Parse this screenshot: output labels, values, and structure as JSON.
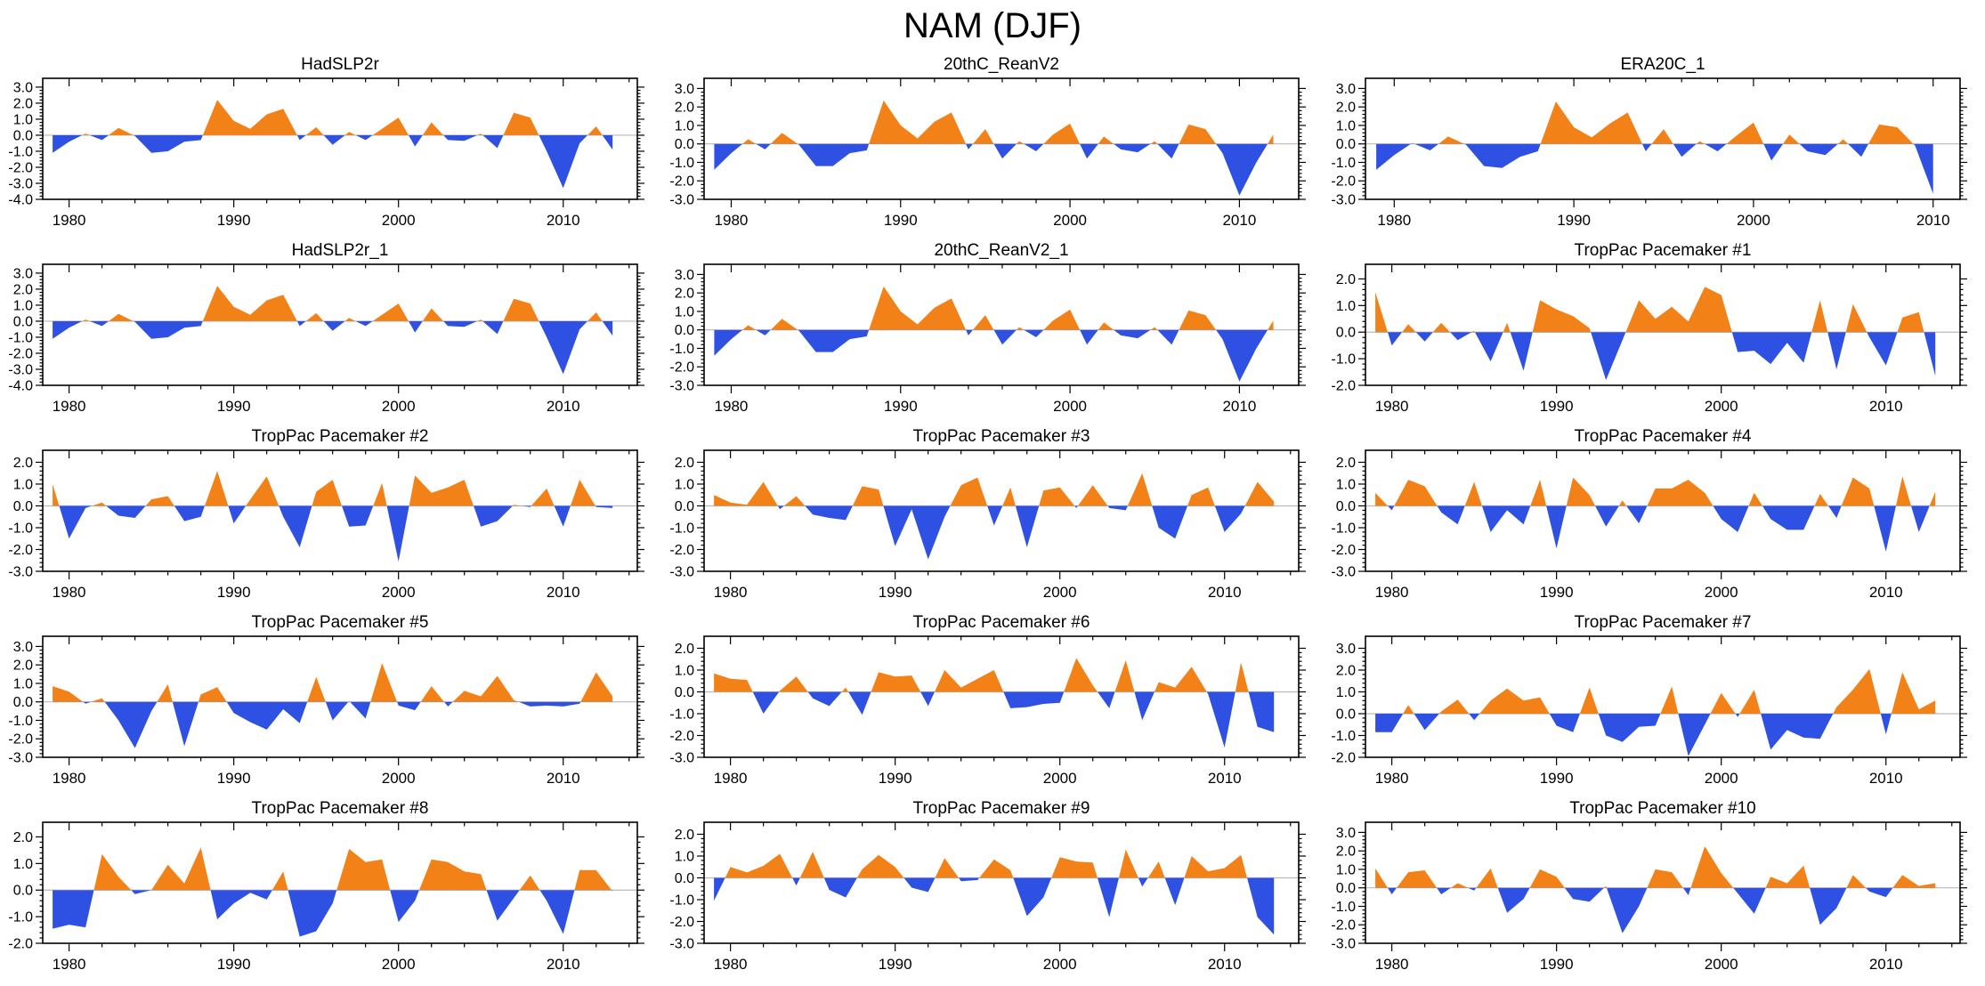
{
  "figure": {
    "title": "NAM (DJF)"
  },
  "colors": {
    "positive": "#F28118",
    "negative": "#2F51E3",
    "zero_line": "#b9b9b9",
    "frame": "#000000"
  },
  "chart_data": [
    {
      "type": "area",
      "title": "HadSLP2r",
      "x_start": 1979,
      "x_ticks": [
        1980,
        1990,
        2000,
        2010
      ],
      "ylim": [
        -4,
        3
      ],
      "ytick_step": 1,
      "values": [
        -1.1,
        -0.4,
        0.1,
        -0.3,
        0.45,
        -0.05,
        -1.1,
        -1.0,
        -0.4,
        -0.3,
        2.2,
        0.9,
        0.4,
        1.3,
        1.65,
        -0.3,
        0.5,
        -0.6,
        0.2,
        -0.3,
        0.4,
        1.1,
        -0.7,
        0.8,
        -0.3,
        -0.35,
        0.1,
        -0.8,
        1.4,
        1.1,
        -1.0,
        -3.3,
        -0.5,
        0.55,
        -0.9
      ]
    },
    {
      "type": "area",
      "title": "20thC_ReanV2",
      "x_start": 1979,
      "x_ticks": [
        1980,
        1990,
        2000,
        2010
      ],
      "ylim": [
        -3,
        3
      ],
      "ytick_step": 1,
      "values": [
        -1.4,
        -0.5,
        0.25,
        -0.3,
        0.6,
        -0.05,
        -1.2,
        -1.2,
        -0.5,
        -0.35,
        2.35,
        1.0,
        0.3,
        1.2,
        1.7,
        -0.3,
        0.8,
        -0.8,
        0.15,
        -0.4,
        0.5,
        1.1,
        -0.8,
        0.4,
        -0.3,
        -0.45,
        0.15,
        -0.8,
        1.05,
        0.8,
        -0.5,
        -2.8,
        -1.0,
        0.5
      ]
    },
    {
      "type": "area",
      "title": "ERA20C_1",
      "x_start": 1979,
      "x_ticks": [
        1980,
        1990,
        2000,
        2010
      ],
      "ylim": [
        -3,
        3
      ],
      "ytick_step": 1,
      "values": [
        -1.4,
        -0.6,
        0.05,
        -0.35,
        0.4,
        -0.05,
        -1.2,
        -1.3,
        -0.7,
        -0.4,
        2.3,
        0.9,
        0.35,
        1.1,
        1.7,
        -0.4,
        0.8,
        -0.7,
        0.15,
        -0.4,
        0.4,
        1.15,
        -0.9,
        0.5,
        -0.4,
        -0.6,
        0.25,
        -0.7,
        1.05,
        0.9,
        -0.1,
        -2.7
      ]
    },
    {
      "type": "area",
      "title": "HadSLP2r_1",
      "x_start": 1979,
      "x_ticks": [
        1980,
        1990,
        2000,
        2010
      ],
      "ylim": [
        -4,
        3
      ],
      "ytick_step": 1,
      "values": [
        -1.1,
        -0.4,
        0.1,
        -0.3,
        0.45,
        -0.05,
        -1.1,
        -1.0,
        -0.4,
        -0.3,
        2.2,
        0.9,
        0.4,
        1.3,
        1.65,
        -0.3,
        0.5,
        -0.6,
        0.2,
        -0.3,
        0.4,
        1.1,
        -0.7,
        0.8,
        -0.3,
        -0.35,
        0.1,
        -0.8,
        1.4,
        1.1,
        -1.0,
        -3.3,
        -0.5,
        0.55,
        -0.9
      ]
    },
    {
      "type": "area",
      "title": "20thC_ReanV2_1",
      "x_start": 1979,
      "x_ticks": [
        1980,
        1990,
        2000,
        2010
      ],
      "ylim": [
        -3,
        3
      ],
      "ytick_step": 1,
      "values": [
        -1.4,
        -0.5,
        0.25,
        -0.3,
        0.6,
        -0.05,
        -1.2,
        -1.2,
        -0.5,
        -0.35,
        2.35,
        1.0,
        0.3,
        1.2,
        1.7,
        -0.3,
        0.8,
        -0.8,
        0.15,
        -0.4,
        0.5,
        1.1,
        -0.8,
        0.4,
        -0.3,
        -0.45,
        0.15,
        -0.8,
        1.05,
        0.8,
        -0.5,
        -2.8,
        -1.0,
        0.5
      ]
    },
    {
      "type": "area",
      "title": "TropPac Pacemaker #1",
      "x_start": 1979,
      "x_ticks": [
        1980,
        1990,
        2000,
        2010
      ],
      "ylim": [
        -2,
        2
      ],
      "ytick_step": 1,
      "values": [
        1.5,
        -0.5,
        0.3,
        -0.35,
        0.35,
        -0.3,
        0.05,
        -1.1,
        0.35,
        -1.45,
        1.2,
        0.85,
        0.6,
        0.15,
        -1.8,
        -0.3,
        1.2,
        0.5,
        0.95,
        0.4,
        1.7,
        1.4,
        -0.75,
        -0.7,
        -1.2,
        -0.4,
        -1.15,
        1.2,
        -1.4,
        1.05,
        -0.2,
        -1.25,
        0.55,
        0.75,
        -1.65
      ]
    },
    {
      "type": "area",
      "title": "TropPac Pacemaker #2",
      "x_start": 1979,
      "x_ticks": [
        1980,
        1990,
        2000,
        2010
      ],
      "ylim": [
        -3,
        2
      ],
      "ytick_step": 1,
      "values": [
        1.0,
        -1.5,
        -0.1,
        0.15,
        -0.45,
        -0.55,
        0.3,
        0.45,
        -0.7,
        -0.5,
        1.6,
        -0.8,
        0.3,
        1.35,
        -0.5,
        -1.9,
        0.65,
        1.2,
        -0.95,
        -0.9,
        1.05,
        -2.55,
        1.4,
        0.6,
        0.85,
        1.2,
        -0.95,
        -0.7,
        0.05,
        -0.05,
        0.8,
        -0.95,
        1.2,
        -0.05,
        -0.1
      ]
    },
    {
      "type": "area",
      "title": "TropPac Pacemaker #3",
      "x_start": 1979,
      "x_ticks": [
        1980,
        1990,
        2000,
        2010
      ],
      "ylim": [
        -3,
        2
      ],
      "ytick_step": 1,
      "values": [
        0.5,
        0.15,
        0.05,
        1.1,
        -0.15,
        0.45,
        -0.4,
        -0.55,
        -0.65,
        0.9,
        0.75,
        -1.85,
        -0.15,
        -2.45,
        -0.5,
        0.95,
        1.3,
        -0.9,
        0.85,
        -1.9,
        0.7,
        0.85,
        -0.1,
        0.95,
        -0.1,
        -0.2,
        1.5,
        -1.0,
        -1.5,
        0.5,
        0.85,
        -1.2,
        -0.35,
        1.1,
        0.2
      ]
    },
    {
      "type": "area",
      "title": "TropPac Pacemaker #4",
      "x_start": 1979,
      "x_ticks": [
        1980,
        1990,
        2000,
        2010
      ],
      "ylim": [
        -3,
        2
      ],
      "ytick_step": 1,
      "values": [
        0.6,
        -0.2,
        1.2,
        0.9,
        -0.3,
        -0.85,
        1.1,
        -1.2,
        -0.2,
        -0.85,
        1.2,
        -1.95,
        1.3,
        0.5,
        -0.95,
        0.25,
        -0.8,
        0.8,
        0.8,
        1.2,
        0.6,
        -0.6,
        -1.2,
        0.6,
        -0.6,
        -1.1,
        -1.1,
        0.55,
        -0.55,
        1.3,
        0.8,
        -2.1,
        1.35,
        -1.2,
        0.65
      ]
    },
    {
      "type": "area",
      "title": "TropPac Pacemaker #5",
      "x_start": 1979,
      "x_ticks": [
        1980,
        1990,
        2000,
        2010
      ],
      "ylim": [
        -3,
        3
      ],
      "ytick_step": 1,
      "values": [
        0.85,
        0.55,
        -0.1,
        0.2,
        -1.0,
        -2.5,
        -0.5,
        0.95,
        -2.4,
        0.4,
        0.8,
        -0.6,
        -1.1,
        -1.5,
        -0.4,
        -1.15,
        1.35,
        -1.0,
        0.05,
        -0.9,
        2.1,
        -0.2,
        -0.45,
        0.85,
        -0.25,
        0.6,
        0.3,
        1.4,
        0.1,
        -0.25,
        -0.2,
        -0.25,
        -0.1,
        1.6,
        0.3
      ]
    },
    {
      "type": "area",
      "title": "TropPac Pacemaker #6",
      "x_start": 1979,
      "x_ticks": [
        1980,
        1990,
        2000,
        2010
      ],
      "ylim": [
        -3,
        2
      ],
      "ytick_step": 1,
      "values": [
        0.85,
        0.6,
        0.55,
        -1.0,
        0.05,
        0.7,
        -0.3,
        -0.65,
        0.2,
        -1.05,
        0.9,
        0.7,
        0.75,
        -0.65,
        1.0,
        0.2,
        0.6,
        1.0,
        -0.75,
        -0.7,
        -0.55,
        -0.5,
        1.55,
        0.3,
        -0.75,
        1.45,
        -1.3,
        0.45,
        0.2,
        1.15,
        -0.1,
        -2.55,
        1.35,
        -1.6,
        -1.85
      ]
    },
    {
      "type": "area",
      "title": "TropPac Pacemaker #7",
      "x_start": 1979,
      "x_ticks": [
        1980,
        1990,
        2000,
        2010
      ],
      "ylim": [
        -2,
        3
      ],
      "ytick_step": 1,
      "values": [
        -0.85,
        -0.85,
        0.4,
        -0.75,
        0.1,
        0.65,
        -0.3,
        0.6,
        1.15,
        0.6,
        0.75,
        -0.55,
        -0.85,
        1.2,
        -1.0,
        -1.3,
        -0.6,
        -0.55,
        1.25,
        -1.95,
        -0.5,
        0.95,
        -0.15,
        1.1,
        -1.65,
        -0.75,
        -1.1,
        -1.15,
        0.3,
        1.1,
        2.05,
        -0.95,
        1.9,
        0.2,
        0.6
      ]
    },
    {
      "type": "area",
      "title": "TropPac Pacemaker #8",
      "x_start": 1979,
      "x_ticks": [
        1980,
        1990,
        2000,
        2010
      ],
      "ylim": [
        -2,
        2
      ],
      "ytick_step": 1,
      "values": [
        -1.45,
        -1.3,
        -1.4,
        1.35,
        0.5,
        -0.15,
        0.0,
        0.95,
        0.25,
        1.6,
        -1.1,
        -0.5,
        -0.1,
        -0.35,
        0.7,
        -1.75,
        -1.55,
        -0.5,
        1.55,
        1.05,
        1.15,
        -1.2,
        -0.4,
        1.15,
        1.05,
        0.7,
        0.6,
        -1.15,
        -0.3,
        0.55,
        -0.4,
        -1.65,
        0.75,
        0.75,
        -0.05
      ]
    },
    {
      "type": "area",
      "title": "TropPac Pacemaker #9",
      "x_start": 1979,
      "x_ticks": [
        1980,
        1990,
        2000,
        2010
      ],
      "ylim": [
        -3,
        2
      ],
      "ytick_step": 1,
      "values": [
        -1.05,
        0.5,
        0.25,
        0.55,
        1.1,
        -0.35,
        1.2,
        -0.55,
        -0.9,
        0.4,
        1.05,
        0.5,
        -0.45,
        -0.65,
        0.9,
        -0.15,
        -0.1,
        0.85,
        0.35,
        -1.75,
        -0.9,
        0.95,
        0.75,
        0.7,
        -1.8,
        1.3,
        -0.4,
        0.75,
        -1.25,
        1.0,
        0.3,
        0.45,
        1.05,
        -1.8,
        -2.6
      ]
    },
    {
      "type": "area",
      "title": "TropPac Pacemaker #10",
      "x_start": 1979,
      "x_ticks": [
        1980,
        1990,
        2000,
        2010
      ],
      "ylim": [
        -3,
        3
      ],
      "ytick_step": 1,
      "values": [
        1.05,
        -0.35,
        0.85,
        0.95,
        -0.35,
        0.25,
        -0.15,
        1.05,
        -1.35,
        -0.6,
        1.0,
        0.6,
        -0.6,
        -0.75,
        0.1,
        -2.45,
        -1.0,
        1.0,
        0.85,
        -0.4,
        2.25,
        0.8,
        -0.3,
        -1.4,
        0.6,
        0.25,
        1.2,
        -2.0,
        -1.1,
        0.7,
        -0.2,
        -0.5,
        0.7,
        0.1,
        0.25
      ]
    }
  ]
}
